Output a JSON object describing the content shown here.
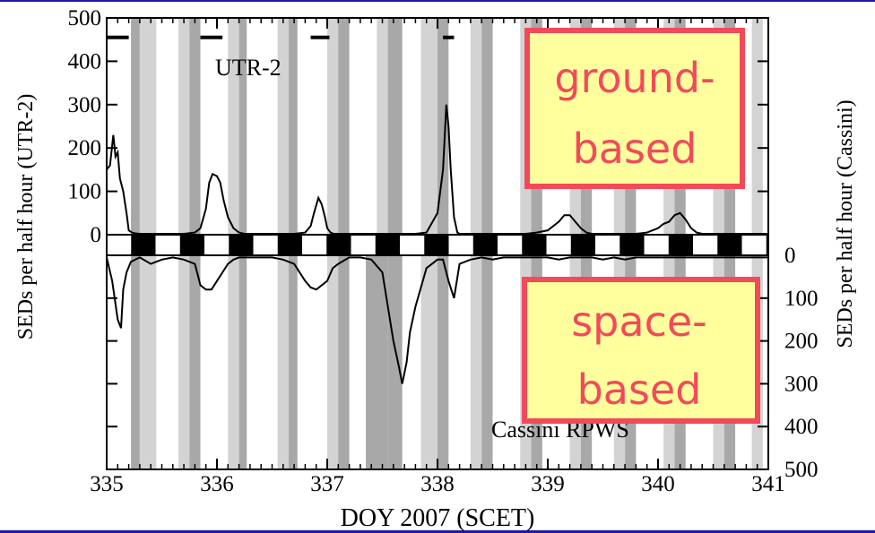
{
  "chart_data": {
    "type": "line",
    "xlabel": "DOY 2007 (SCET)",
    "xlim": [
      335,
      341
    ],
    "xticks": [
      "335",
      "336",
      "337",
      "338",
      "339",
      "340",
      "341"
    ],
    "grid": false,
    "upper_panel": {
      "ylabel": "SEDs per half hour (UTR-2)",
      "ylim": [
        0,
        500
      ],
      "yticks": [
        "0",
        "100",
        "200",
        "300",
        "400",
        "500"
      ],
      "label": "UTR-2",
      "callout": "ground-\nbased",
      "observation_bars": [
        [
          335.0,
          335.2
        ],
        [
          335.85,
          336.05
        ],
        [
          336.85,
          337.02
        ],
        [
          338.05,
          338.15
        ]
      ],
      "series": [
        {
          "x": [
            335.0,
            335.03,
            335.06,
            335.08,
            335.1,
            335.12,
            335.15,
            335.18,
            335.2,
            335.23,
            335.26,
            335.3,
            335.4,
            335.5,
            335.6,
            335.7,
            335.8,
            335.85,
            335.9,
            335.93,
            335.96,
            336.0,
            336.03,
            336.06,
            336.1,
            336.15,
            336.2,
            336.25,
            336.3,
            336.4,
            336.5,
            336.6,
            336.7,
            336.8,
            336.85,
            336.88,
            336.92,
            336.95,
            336.98,
            337.0,
            337.03,
            337.06,
            337.1,
            337.2,
            337.3,
            337.4,
            337.5,
            337.6,
            337.7,
            337.8,
            337.9,
            338.0,
            338.05,
            338.08,
            338.1,
            338.12,
            338.15,
            338.18,
            338.2,
            338.3,
            338.4,
            338.5,
            338.6,
            338.7,
            338.8,
            338.9,
            339.0,
            339.1,
            339.15,
            339.2,
            339.25,
            339.3,
            339.35,
            339.4,
            339.5,
            339.6,
            339.7,
            339.8,
            339.9,
            340.0,
            340.05,
            340.1,
            340.15,
            340.2,
            340.25,
            340.3,
            340.35,
            340.4,
            340.5,
            340.6,
            340.7,
            340.8,
            340.9,
            341.0
          ],
          "y": [
            150,
            160,
            230,
            180,
            190,
            130,
            100,
            50,
            10,
            5,
            3,
            2,
            2,
            2,
            2,
            2,
            5,
            15,
            60,
            120,
            140,
            135,
            120,
            80,
            40,
            15,
            5,
            2,
            2,
            2,
            2,
            2,
            2,
            5,
            20,
            50,
            85,
            70,
            40,
            15,
            5,
            2,
            2,
            2,
            2,
            2,
            2,
            2,
            2,
            2,
            5,
            50,
            150,
            300,
            250,
            150,
            40,
            5,
            2,
            2,
            2,
            2,
            2,
            2,
            2,
            5,
            10,
            30,
            45,
            45,
            30,
            15,
            5,
            2,
            2,
            2,
            2,
            2,
            5,
            15,
            25,
            30,
            45,
            50,
            35,
            15,
            5,
            2,
            2,
            2,
            2,
            2,
            2,
            2
          ]
        }
      ]
    },
    "lower_panel": {
      "ylabel": "SEDs per half hour (Cassini)",
      "ylim": [
        0,
        500
      ],
      "inverted": true,
      "yticks": [
        "0",
        "100",
        "200",
        "300",
        "400",
        "500"
      ],
      "label": "Cassini RPWS",
      "callout": "space-\nbased",
      "series": [
        {
          "x": [
            335.0,
            335.05,
            335.1,
            335.13,
            335.15,
            335.18,
            335.22,
            335.26,
            335.3,
            335.4,
            335.5,
            335.6,
            335.7,
            335.8,
            335.85,
            335.9,
            335.95,
            336.0,
            336.05,
            336.1,
            336.15,
            336.2,
            336.3,
            336.4,
            336.5,
            336.6,
            336.7,
            336.8,
            336.85,
            336.9,
            336.95,
            337.0,
            337.05,
            337.1,
            337.2,
            337.3,
            337.4,
            337.5,
            337.55,
            337.6,
            337.65,
            337.68,
            337.72,
            337.75,
            337.8,
            337.9,
            338.0,
            338.05,
            338.1,
            338.15,
            338.2,
            338.3,
            338.4,
            338.5,
            338.6,
            338.7,
            338.8,
            338.9,
            339.0,
            339.1,
            339.2,
            339.3,
            339.4,
            339.5,
            339.6,
            339.7,
            339.8,
            339.9,
            340.0,
            340.1,
            340.2,
            340.3,
            340.4,
            340.5,
            340.6,
            340.7,
            340.8,
            340.9,
            341.0
          ],
          "y": [
            5,
            60,
            150,
            170,
            80,
            40,
            15,
            10,
            5,
            20,
            10,
            5,
            10,
            20,
            70,
            80,
            80,
            60,
            40,
            20,
            10,
            5,
            5,
            5,
            5,
            10,
            20,
            60,
            75,
            80,
            70,
            60,
            30,
            20,
            5,
            5,
            10,
            40,
            120,
            200,
            260,
            300,
            250,
            180,
            120,
            30,
            10,
            10,
            60,
            100,
            20,
            10,
            5,
            10,
            5,
            5,
            5,
            5,
            5,
            10,
            5,
            5,
            5,
            10,
            5,
            10,
            5,
            5,
            5,
            5,
            5,
            5,
            5,
            5,
            5,
            5,
            5,
            5,
            5
          ]
        }
      ]
    },
    "day_night_bar": {
      "period_days": 0.4431,
      "start": 335.0
    },
    "shaded_bands": [
      {
        "x0": 335.22,
        "x1": 335.3,
        "tone": "dark"
      },
      {
        "x0": 335.3,
        "x1": 335.45,
        "tone": "light"
      },
      {
        "x0": 335.65,
        "x1": 335.75,
        "tone": "light"
      },
      {
        "x0": 335.75,
        "x1": 335.85,
        "tone": "dark"
      },
      {
        "x0": 336.1,
        "x1": 336.2,
        "tone": "light"
      },
      {
        "x0": 336.2,
        "x1": 336.27,
        "tone": "dark"
      },
      {
        "x0": 336.55,
        "x1": 336.65,
        "tone": "light"
      },
      {
        "x0": 336.65,
        "x1": 336.73,
        "tone": "dark"
      },
      {
        "x0": 337.0,
        "x1": 337.1,
        "tone": "light"
      },
      {
        "x0": 337.1,
        "x1": 337.2,
        "tone": "dark"
      },
      {
        "x0": 337.45,
        "x1": 337.55,
        "tone": "light"
      },
      {
        "x0": 337.55,
        "x1": 337.68,
        "tone": "dark"
      },
      {
        "x0": 337.85,
        "x1": 338.0,
        "tone": "light"
      },
      {
        "x0": 338.0,
        "x1": 338.1,
        "tone": "dark"
      },
      {
        "x0": 338.3,
        "x1": 338.4,
        "tone": "light"
      },
      {
        "x0": 338.4,
        "x1": 338.5,
        "tone": "dark"
      },
      {
        "x0": 338.75,
        "x1": 338.85,
        "tone": "light"
      },
      {
        "x0": 338.85,
        "x1": 338.95,
        "tone": "dark"
      },
      {
        "x0": 339.2,
        "x1": 339.3,
        "tone": "light"
      },
      {
        "x0": 339.3,
        "x1": 339.4,
        "tone": "dark"
      },
      {
        "x0": 339.6,
        "x1": 339.7,
        "tone": "light"
      },
      {
        "x0": 339.7,
        "x1": 339.8,
        "tone": "dark"
      },
      {
        "x0": 340.05,
        "x1": 340.15,
        "tone": "light"
      },
      {
        "x0": 340.15,
        "x1": 340.25,
        "tone": "dark"
      },
      {
        "x0": 340.5,
        "x1": 340.6,
        "tone": "light"
      },
      {
        "x0": 340.6,
        "x1": 340.7,
        "tone": "dark"
      },
      {
        "x0": 340.85,
        "x1": 340.95,
        "tone": "light"
      },
      {
        "x0": 337.35,
        "x1": 337.55,
        "tone": "dark",
        "panel": "lower"
      }
    ],
    "colors": {
      "band_light": "#d3d3d3",
      "band_dark": "#a8a8a8",
      "callout_fill": "#ffff9e",
      "callout_border": "#f24a5a",
      "callout_text": "#f24a5a",
      "frame_bar": "#1a1aa6"
    }
  }
}
